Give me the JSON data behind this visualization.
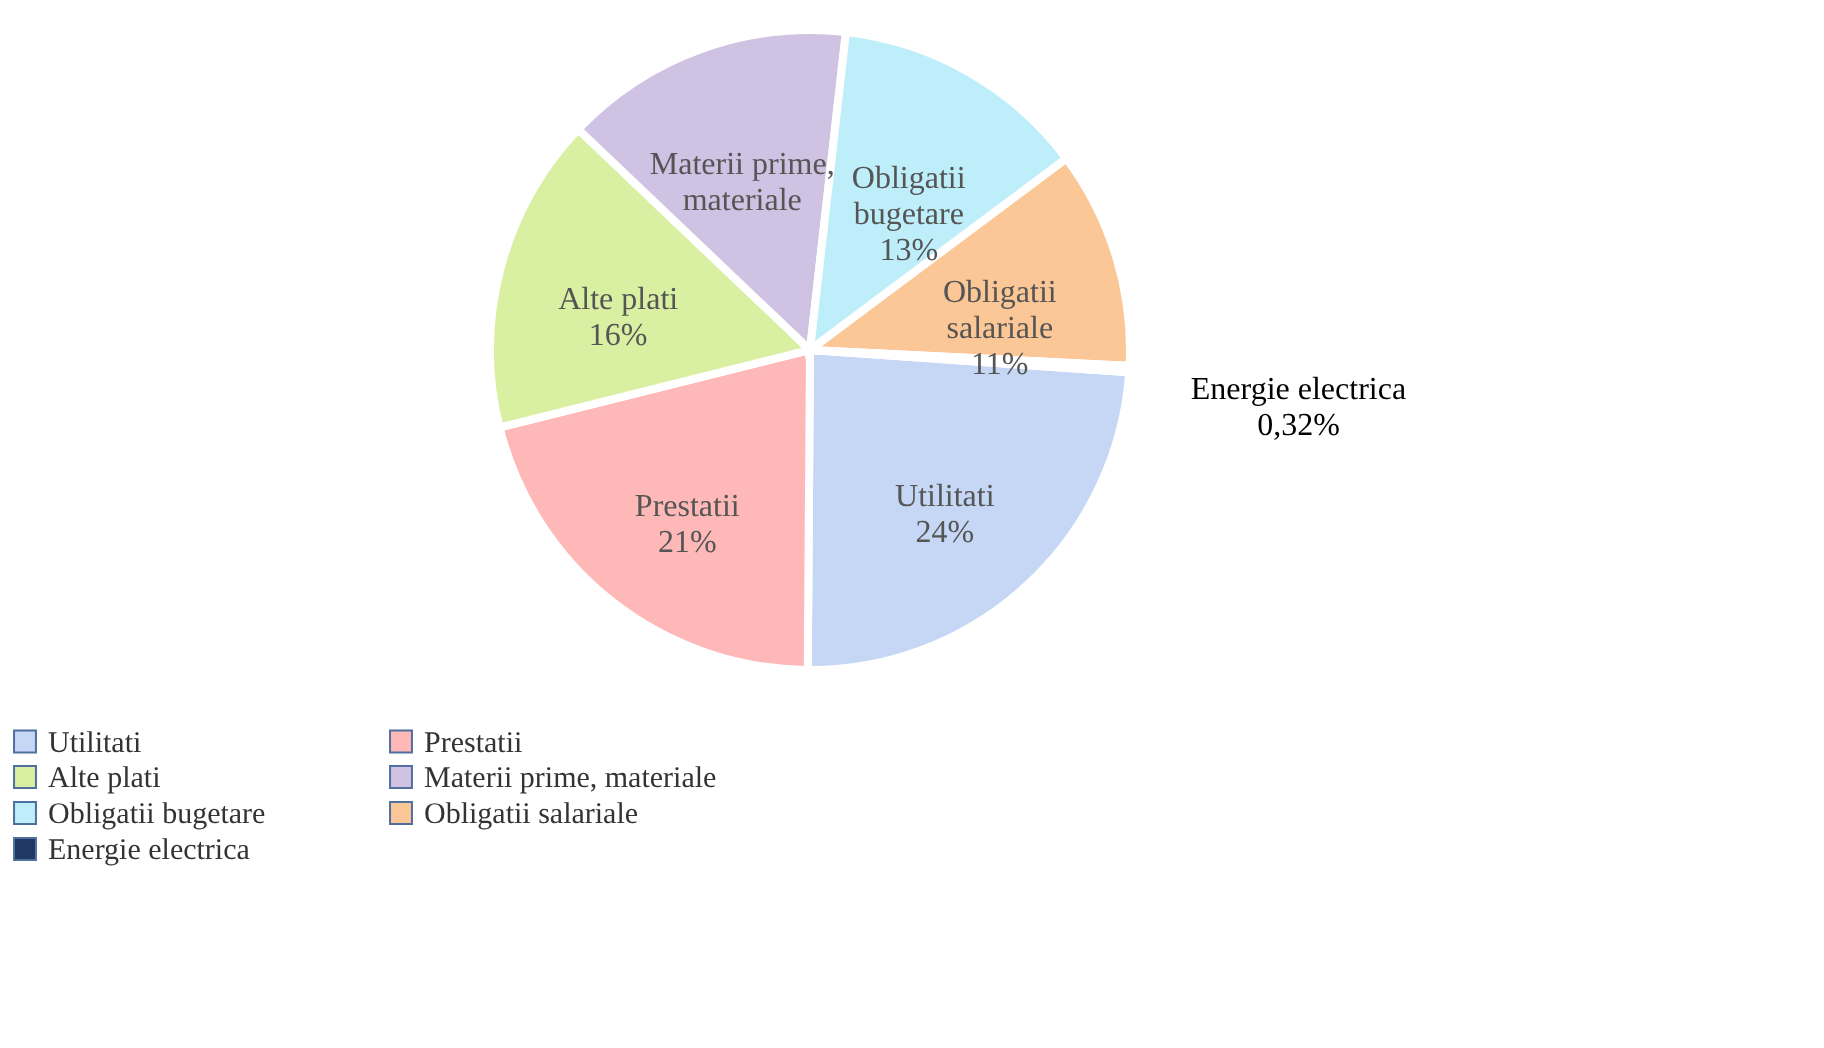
{
  "chart_data": {
    "type": "pie",
    "categories": [
      "Utilitati",
      "Prestatii",
      "Alte plati",
      "Materii prime, materiale",
      "Obligatii bugetare",
      "Obligatii salariale",
      "Energie electrica"
    ],
    "values": [
      24,
      21,
      16,
      14.68,
      13,
      11,
      0.32
    ],
    "value_labels": [
      "24%",
      "21%",
      "16%",
      null,
      "13%",
      "11%",
      "0,32%"
    ],
    "colors": [
      "#c5d7f5",
      "#ffb8b8",
      "#d9f0a3",
      "#cfc2e3",
      "#bdeef9",
      "#fcc796",
      "#1f3864"
    ],
    "legend": "bottom"
  }
}
